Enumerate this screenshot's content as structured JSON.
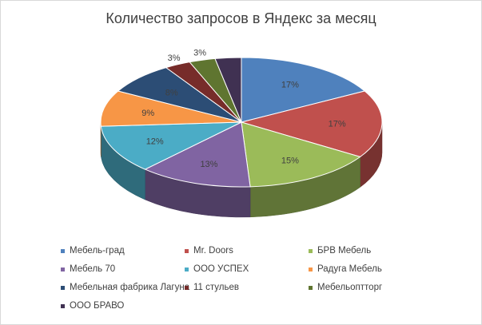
{
  "chart_data": {
    "type": "pie",
    "title": "Количество запросов в Яндекс за месяц",
    "categories": [
      "Мебель-град",
      "Mr. Doors",
      "БРВ Мебель",
      "Мебель 70",
      "ООО УСПЕХ",
      "Радуга Мебель",
      "Мебельная фабрика Лагуна",
      "11 стульев",
      "Мебельоптторг",
      "ООО БРАВО"
    ],
    "values": [
      17,
      17,
      15,
      13,
      12,
      9,
      8,
      3,
      3,
      3
    ],
    "data_labels": [
      "17%",
      "17%",
      "15%",
      "13%",
      "12%",
      "9%",
      "8%",
      "3%",
      "3%",
      ""
    ],
    "colors": [
      "#4f81bd",
      "#c0504d",
      "#9bbb59",
      "#8064a2",
      "#4bacc6",
      "#f79646",
      "#2c4d75",
      "#772c2a",
      "#5f7530",
      "#403152"
    ],
    "legend_placement": "bottom",
    "three_d": true
  }
}
